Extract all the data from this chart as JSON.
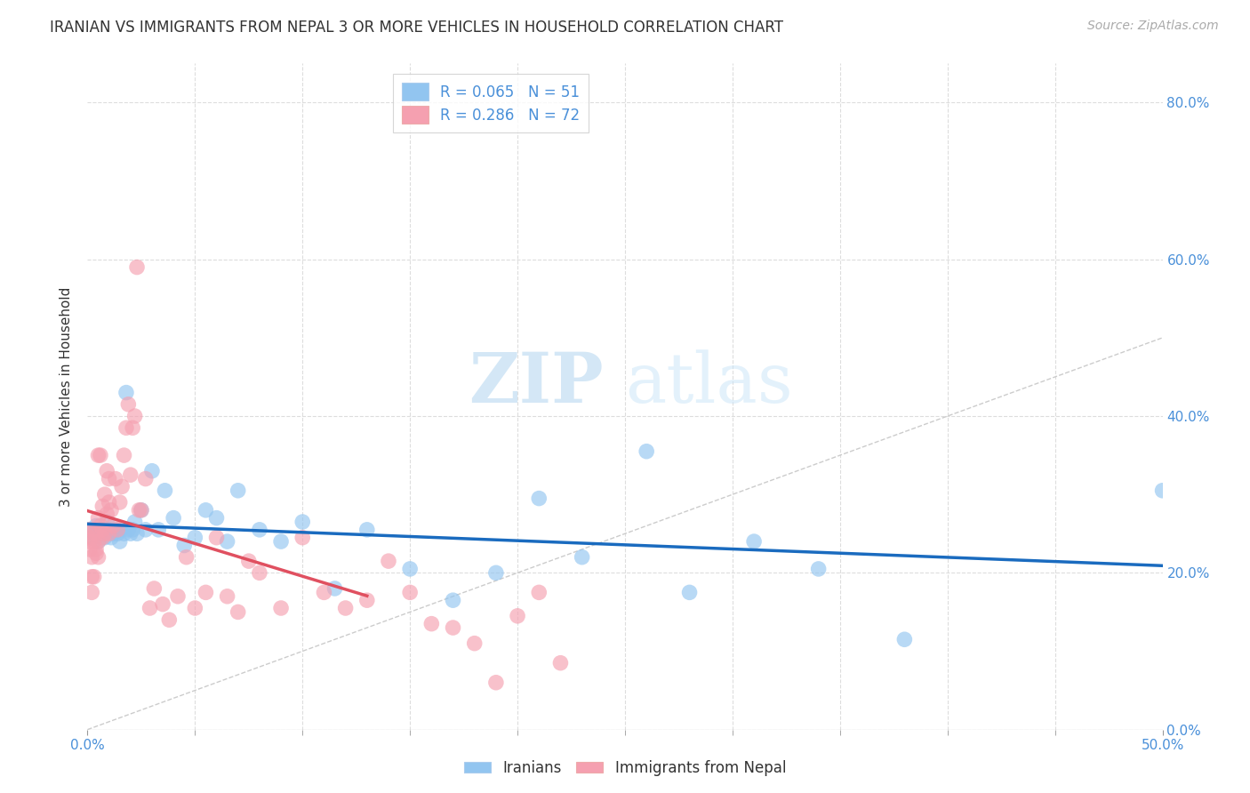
{
  "title": "IRANIAN VS IMMIGRANTS FROM NEPAL 3 OR MORE VEHICLES IN HOUSEHOLD CORRELATION CHART",
  "source": "Source: ZipAtlas.com",
  "ylabel": "3 or more Vehicles in Household",
  "xmin": 0.0,
  "xmax": 0.5,
  "ymin": 0.0,
  "ymax": 0.85,
  "x_tick_labels_show": [
    "0.0%",
    "50.0%"
  ],
  "x_tick_positions_show": [
    0.0,
    0.5
  ],
  "x_minor_ticks": [
    0.05,
    0.1,
    0.15,
    0.2,
    0.25,
    0.3,
    0.35,
    0.4,
    0.45
  ],
  "y_ticks": [
    0.0,
    0.2,
    0.4,
    0.6,
    0.8
  ],
  "y_tick_labels": [
    "0.0%",
    "20.0%",
    "40.0%",
    "60.0%",
    "80.0%"
  ],
  "watermark_zip": "ZIP",
  "watermark_atlas": "atlas",
  "iranians_color": "#92c5f0",
  "nepal_color": "#f5a0b0",
  "iranians_line_color": "#1a6bbf",
  "nepal_line_color": "#e05060",
  "diagonal_color": "#cccccc",
  "background_color": "#ffffff",
  "grid_color": "#dddddd",
  "title_color": "#333333",
  "tick_label_color": "#4a90d9",
  "iranians_x": [
    0.001,
    0.002,
    0.003,
    0.004,
    0.005,
    0.006,
    0.007,
    0.008,
    0.009,
    0.01,
    0.011,
    0.012,
    0.013,
    0.014,
    0.015,
    0.016,
    0.017,
    0.018,
    0.019,
    0.02,
    0.021,
    0.022,
    0.023,
    0.025,
    0.027,
    0.03,
    0.033,
    0.036,
    0.04,
    0.045,
    0.05,
    0.055,
    0.06,
    0.065,
    0.07,
    0.08,
    0.09,
    0.1,
    0.115,
    0.13,
    0.15,
    0.17,
    0.19,
    0.21,
    0.23,
    0.26,
    0.28,
    0.31,
    0.34,
    0.38,
    0.5
  ],
  "iranians_y": [
    0.255,
    0.245,
    0.25,
    0.26,
    0.24,
    0.255,
    0.25,
    0.245,
    0.265,
    0.255,
    0.245,
    0.25,
    0.255,
    0.25,
    0.24,
    0.255,
    0.25,
    0.43,
    0.255,
    0.25,
    0.255,
    0.265,
    0.25,
    0.28,
    0.255,
    0.33,
    0.255,
    0.305,
    0.27,
    0.235,
    0.245,
    0.28,
    0.27,
    0.24,
    0.305,
    0.255,
    0.24,
    0.265,
    0.18,
    0.255,
    0.205,
    0.165,
    0.2,
    0.295,
    0.22,
    0.355,
    0.175,
    0.24,
    0.205,
    0.115,
    0.305
  ],
  "nepal_x": [
    0.0005,
    0.001,
    0.001,
    0.001,
    0.002,
    0.002,
    0.002,
    0.003,
    0.003,
    0.003,
    0.004,
    0.004,
    0.004,
    0.005,
    0.005,
    0.005,
    0.005,
    0.006,
    0.006,
    0.007,
    0.007,
    0.007,
    0.008,
    0.008,
    0.009,
    0.009,
    0.01,
    0.01,
    0.01,
    0.011,
    0.012,
    0.013,
    0.014,
    0.015,
    0.016,
    0.017,
    0.018,
    0.019,
    0.02,
    0.021,
    0.022,
    0.023,
    0.024,
    0.025,
    0.027,
    0.029,
    0.031,
    0.035,
    0.038,
    0.042,
    0.046,
    0.05,
    0.055,
    0.06,
    0.065,
    0.07,
    0.075,
    0.08,
    0.09,
    0.1,
    0.11,
    0.12,
    0.13,
    0.14,
    0.15,
    0.16,
    0.17,
    0.18,
    0.19,
    0.2,
    0.21,
    0.22
  ],
  "nepal_y": [
    0.255,
    0.24,
    0.23,
    0.245,
    0.195,
    0.175,
    0.22,
    0.24,
    0.255,
    0.195,
    0.23,
    0.25,
    0.225,
    0.27,
    0.22,
    0.35,
    0.24,
    0.26,
    0.35,
    0.255,
    0.285,
    0.245,
    0.3,
    0.25,
    0.33,
    0.275,
    0.25,
    0.29,
    0.32,
    0.28,
    0.26,
    0.32,
    0.255,
    0.29,
    0.31,
    0.35,
    0.385,
    0.415,
    0.325,
    0.385,
    0.4,
    0.59,
    0.28,
    0.28,
    0.32,
    0.155,
    0.18,
    0.16,
    0.14,
    0.17,
    0.22,
    0.155,
    0.175,
    0.245,
    0.17,
    0.15,
    0.215,
    0.2,
    0.155,
    0.245,
    0.175,
    0.155,
    0.165,
    0.215,
    0.175,
    0.135,
    0.13,
    0.11,
    0.06,
    0.145,
    0.175,
    0.085
  ]
}
